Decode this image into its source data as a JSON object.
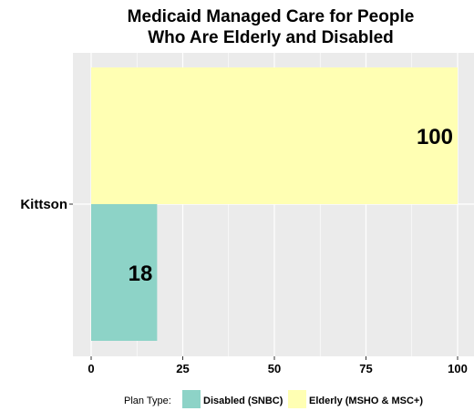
{
  "chart_data": {
    "type": "bar",
    "orientation": "horizontal",
    "title": "Medicaid Managed Care for People Who Are Elderly and Disabled",
    "title_lines": [
      "Medicaid Managed Care for People",
      "Who Are Elderly and Disabled"
    ],
    "categories": [
      "Kittson"
    ],
    "series": [
      {
        "name": "Elderly (MSHO & MSC+)",
        "values": [
          100
        ],
        "color": "#FFFFB3"
      },
      {
        "name": "Disabled (SNBC)",
        "values": [
          18
        ],
        "color": "#8DD3C7"
      }
    ],
    "xlim": [
      0,
      100
    ],
    "x_ticks": [
      0,
      25,
      50,
      75,
      100
    ],
    "xlabel": "",
    "ylabel": "",
    "grid": true,
    "panel_background": "#EBEBEB",
    "legend": {
      "title": "Plan Type:",
      "position": "bottom",
      "entries": [
        {
          "label": "Disabled (SNBC)",
          "color": "#8DD3C7"
        },
        {
          "label": "Elderly (MSHO & MSC+)",
          "color": "#FFFFB3"
        }
      ]
    }
  }
}
